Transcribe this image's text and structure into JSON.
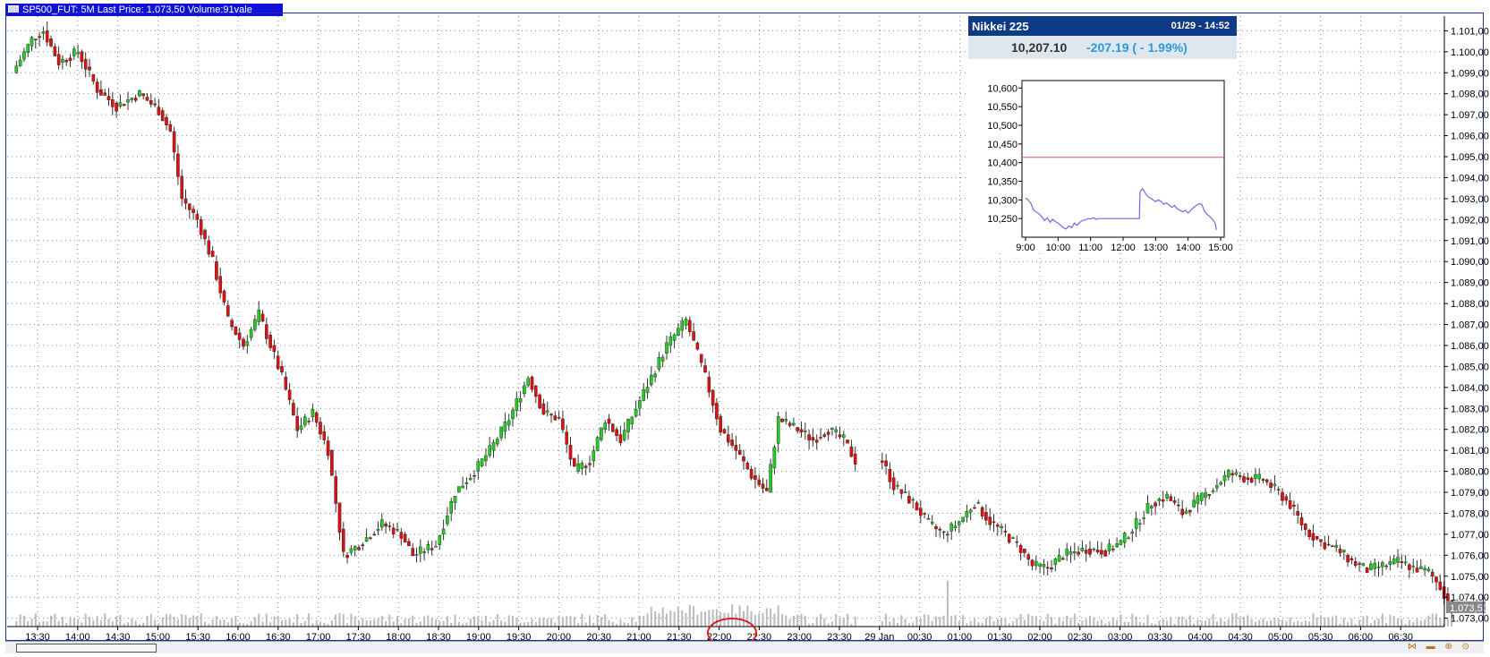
{
  "window": {
    "title": "SP500_FUT: 5M Last Price: 1.073,50 Volume:91vale"
  },
  "colors": {
    "up": "#22cc22",
    "down": "#dd1111",
    "volume": "#bbbbbb",
    "grid": "#888888",
    "frame": "#1c2ea8",
    "highlight_circle": "#d42020"
  },
  "icons": [
    "window-menu-icon",
    "zoom-icons"
  ],
  "chart_data": [
    {
      "type": "candlestick",
      "title": "SP500_FUT: 5M Last Price: 1.073,50 Volume:91vale",
      "xlabel": "",
      "ylabel": "",
      "ylim": [
        1072.6,
        1101.7
      ],
      "grid": true,
      "y_ticks": [
        "1.073,00",
        "1.074,00",
        "1.075,00",
        "1.076,00",
        "1.077,00",
        "1.078,00",
        "1.079,00",
        "1.080,00",
        "1.081,00",
        "1.082,00",
        "1.083,00",
        "1.084,00",
        "1.085,00",
        "1.086,00",
        "1.087,00",
        "1.088,00",
        "1.089,00",
        "1.090,00",
        "1.091,00",
        "1.092,00",
        "1.093,00",
        "1.094,00",
        "1.095,00",
        "1.096,00",
        "1.097,00",
        "1.098,00",
        "1.099,00",
        "1.100,00",
        "1.101,00"
      ],
      "x_labels": [
        "13:30",
        "14:00",
        "14:30",
        "15:00",
        "15:30",
        "16:00",
        "16:30",
        "17:00",
        "17:30",
        "18:00",
        "18:30",
        "19:00",
        "19:30",
        "20:00",
        "20:30",
        "21:00",
        "21:30",
        "22:00",
        "22:30",
        "23:00",
        "23:30",
        "29 Jan",
        "00:30",
        "01:00",
        "01:30",
        "02:00",
        "02:30",
        "03:00",
        "03:30",
        "04:00",
        "04:30",
        "05:00",
        "05:30",
        "06:00",
        "06:30"
      ],
      "last_price_label": "1.073,50",
      "highlighted_label": "22:00",
      "series": [
        {
          "name": "SP500_FUT",
          "waypoints": [
            [
              0,
              1099.0
            ],
            [
              5,
              1100.6
            ],
            [
              8,
              1101.0
            ],
            [
              12,
              1099.5
            ],
            [
              17,
              1100.0
            ],
            [
              22,
              1098.2
            ],
            [
              27,
              1097.4
            ],
            [
              33,
              1098.0
            ],
            [
              38,
              1097.2
            ],
            [
              41,
              1096.2
            ],
            [
              44,
              1093.0
            ],
            [
              48,
              1092.0
            ],
            [
              52,
              1090.0
            ],
            [
              56,
              1087.2
            ],
            [
              60,
              1086.0
            ],
            [
              64,
              1087.5
            ],
            [
              67,
              1086.0
            ],
            [
              70,
              1084.5
            ],
            [
              74,
              1082.0
            ],
            [
              78,
              1082.8
            ],
            [
              82,
              1081.0
            ],
            [
              86,
              1076.0
            ],
            [
              90,
              1076.5
            ],
            [
              96,
              1077.5
            ],
            [
              101,
              1077.0
            ],
            [
              104,
              1076.0
            ],
            [
              110,
              1076.5
            ],
            [
              115,
              1079.0
            ],
            [
              120,
              1080.0
            ],
            [
              124,
              1081.0
            ],
            [
              129,
              1082.5
            ],
            [
              134,
              1084.5
            ],
            [
              138,
              1082.8
            ],
            [
              142,
              1082.5
            ],
            [
              146,
              1080.0
            ],
            [
              150,
              1080.5
            ],
            [
              154,
              1082.5
            ],
            [
              158,
              1081.5
            ],
            [
              162,
              1083.0
            ],
            [
              166,
              1084.5
            ],
            [
              170,
              1086.0
            ],
            [
              175,
              1087.2
            ],
            [
              180,
              1084.5
            ],
            [
              184,
              1082.0
            ],
            [
              188,
              1081.0
            ],
            [
              192,
              1079.8
            ],
            [
              196,
              1079.0
            ],
            [
              199,
              1082.5
            ],
            [
              204,
              1082.0
            ],
            [
              208,
              1081.5
            ],
            [
              212,
              1082.0
            ],
            [
              216,
              1081.5
            ],
            [
              219,
              1080.5
            ],
            [
              226,
              1080.5
            ],
            [
              229,
              1079.3
            ],
            [
              234,
              1078.5
            ],
            [
              238,
              1077.5
            ],
            [
              242,
              1077.0
            ],
            [
              246,
              1077.6
            ],
            [
              250,
              1078.5
            ],
            [
              254,
              1077.6
            ],
            [
              258,
              1077.0
            ],
            [
              262,
              1076.3
            ],
            [
              265,
              1075.5
            ],
            [
              269,
              1075.4
            ],
            [
              273,
              1076.0
            ],
            [
              279,
              1076.3
            ],
            [
              284,
              1076.2
            ],
            [
              288,
              1076.6
            ],
            [
              292,
              1077.5
            ],
            [
              296,
              1078.5
            ],
            [
              300,
              1078.8
            ],
            [
              304,
              1078.0
            ],
            [
              308,
              1078.6
            ],
            [
              312,
              1079.2
            ],
            [
              316,
              1079.9
            ],
            [
              320,
              1079.7
            ],
            [
              325,
              1079.6
            ],
            [
              329,
              1079.0
            ],
            [
              332,
              1078.4
            ],
            [
              336,
              1077.2
            ],
            [
              340,
              1076.6
            ],
            [
              344,
              1076.3
            ],
            [
              348,
              1075.7
            ],
            [
              352,
              1075.3
            ],
            [
              356,
              1075.5
            ],
            [
              360,
              1075.7
            ],
            [
              364,
              1075.4
            ],
            [
              368,
              1075.2
            ],
            [
              371,
              1074.5
            ],
            [
              374,
              1073.5
            ]
          ],
          "gap_bars": [
            220,
            221,
            222,
            223,
            224,
            225
          ]
        }
      ]
    },
    {
      "type": "line",
      "title": "Nikkei 225",
      "timestamp": "01/29 - 14:52",
      "last": "10,207.10",
      "change": "-207.19 ( - 1.99%)",
      "xlabel": "",
      "ylabel": "",
      "ylim": [
        10200,
        10620
      ],
      "y_ticks": [
        "10,600",
        "10,550",
        "10,500",
        "10,450",
        "10,400",
        "10,350",
        "10,300",
        "10,250"
      ],
      "x_ticks": [
        "9:00",
        "10:00",
        "11:00",
        "12:00",
        "13:00",
        "14:00",
        "15:00"
      ],
      "previous_close": 10414.3,
      "line_color": "#6b6bdf",
      "ref_color": "#e05050",
      "series": [
        {
          "name": "Nikkei 225",
          "points": [
            [
              9.0,
              10305
            ],
            [
              9.08,
              10300
            ],
            [
              9.17,
              10290
            ],
            [
              9.25,
              10272
            ],
            [
              9.33,
              10268
            ],
            [
              9.42,
              10262
            ],
            [
              9.5,
              10255
            ],
            [
              9.58,
              10245
            ],
            [
              9.67,
              10252
            ],
            [
              9.75,
              10240
            ],
            [
              9.83,
              10248
            ],
            [
              9.92,
              10242
            ],
            [
              10.0,
              10238
            ],
            [
              10.08,
              10232
            ],
            [
              10.17,
              10225
            ],
            [
              10.25,
              10222
            ],
            [
              10.33,
              10230
            ],
            [
              10.42,
              10226
            ],
            [
              10.5,
              10238
            ],
            [
              10.58,
              10232
            ],
            [
              10.67,
              10240
            ],
            [
              10.75,
              10245
            ],
            [
              10.83,
              10246
            ],
            [
              10.92,
              10250
            ],
            [
              11.0,
              10249
            ],
            [
              11.08,
              10252
            ],
            [
              11.17,
              10248
            ],
            [
              11.25,
              10250
            ],
            [
              11.5,
              10250
            ],
            [
              12.0,
              10250
            ],
            [
              12.5,
              10250
            ],
            [
              12.52,
              10322
            ],
            [
              12.6,
              10330
            ],
            [
              12.67,
              10320
            ],
            [
              12.75,
              10310
            ],
            [
              12.83,
              10305
            ],
            [
              12.92,
              10300
            ],
            [
              13.0,
              10295
            ],
            [
              13.08,
              10300
            ],
            [
              13.17,
              10296
            ],
            [
              13.25,
              10288
            ],
            [
              13.33,
              10292
            ],
            [
              13.42,
              10286
            ],
            [
              13.5,
              10280
            ],
            [
              13.58,
              10285
            ],
            [
              13.67,
              10276
            ],
            [
              13.75,
              10272
            ],
            [
              13.83,
              10268
            ],
            [
              13.92,
              10272
            ],
            [
              14.0,
              10265
            ],
            [
              14.08,
              10272
            ],
            [
              14.17,
              10280
            ],
            [
              14.25,
              10285
            ],
            [
              14.33,
              10290
            ],
            [
              14.42,
              10288
            ],
            [
              14.5,
              10270
            ],
            [
              14.58,
              10262
            ],
            [
              14.67,
              10255
            ],
            [
              14.75,
              10248
            ],
            [
              14.83,
              10238
            ],
            [
              14.87,
              10220
            ]
          ]
        }
      ]
    }
  ]
}
